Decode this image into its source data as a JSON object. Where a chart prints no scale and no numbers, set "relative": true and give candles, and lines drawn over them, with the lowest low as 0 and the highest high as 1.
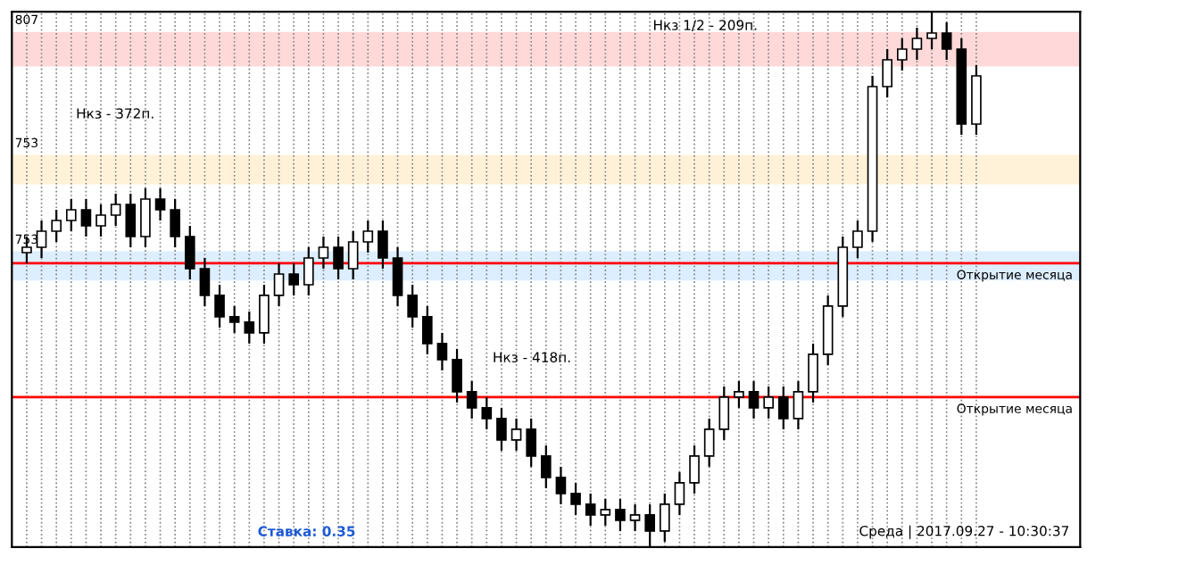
{
  "chart_data": {
    "type": "candlestick",
    "relative": true,
    "categories": [
      null,
      null,
      null,
      null,
      null,
      null,
      null,
      null,
      null,
      null,
      null,
      null,
      null,
      null,
      null,
      null,
      null,
      null,
      null,
      null,
      null,
      null,
      null,
      null,
      null,
      null,
      null,
      null,
      null,
      null,
      null,
      null,
      null,
      null,
      null,
      null,
      null,
      null,
      null,
      null,
      null,
      null,
      null,
      null,
      null,
      null,
      null,
      null,
      null,
      null,
      null,
      null,
      null,
      null,
      null,
      null,
      null,
      null,
      null,
      null,
      null,
      null,
      null,
      null,
      null
    ],
    "ohlc": [
      [
        0.55,
        0.58,
        0.53,
        0.56
      ],
      [
        0.56,
        0.61,
        0.54,
        0.59
      ],
      [
        0.59,
        0.63,
        0.57,
        0.61
      ],
      [
        0.61,
        0.65,
        0.59,
        0.63
      ],
      [
        0.63,
        0.65,
        0.58,
        0.6
      ],
      [
        0.6,
        0.64,
        0.58,
        0.62
      ],
      [
        0.62,
        0.66,
        0.6,
        0.64
      ],
      [
        0.64,
        0.66,
        0.56,
        0.58
      ],
      [
        0.58,
        0.67,
        0.56,
        0.65
      ],
      [
        0.65,
        0.67,
        0.61,
        0.63
      ],
      [
        0.63,
        0.65,
        0.56,
        0.58
      ],
      [
        0.58,
        0.6,
        0.5,
        0.52
      ],
      [
        0.52,
        0.54,
        0.45,
        0.47
      ],
      [
        0.47,
        0.49,
        0.41,
        0.43
      ],
      [
        0.43,
        0.45,
        0.4,
        0.42
      ],
      [
        0.42,
        0.44,
        0.38,
        0.4
      ],
      [
        0.4,
        0.49,
        0.38,
        0.47
      ],
      [
        0.47,
        0.53,
        0.45,
        0.51
      ],
      [
        0.51,
        0.53,
        0.47,
        0.49
      ],
      [
        0.49,
        0.56,
        0.47,
        0.54
      ],
      [
        0.54,
        0.58,
        0.52,
        0.56
      ],
      [
        0.56,
        0.58,
        0.5,
        0.52
      ],
      [
        0.52,
        0.59,
        0.5,
        0.57
      ],
      [
        0.57,
        0.61,
        0.55,
        0.59
      ],
      [
        0.59,
        0.61,
        0.52,
        0.54
      ],
      [
        0.54,
        0.56,
        0.45,
        0.47
      ],
      [
        0.47,
        0.49,
        0.41,
        0.43
      ],
      [
        0.43,
        0.45,
        0.36,
        0.38
      ],
      [
        0.38,
        0.4,
        0.33,
        0.35
      ],
      [
        0.35,
        0.37,
        0.27,
        0.29
      ],
      [
        0.29,
        0.31,
        0.24,
        0.26
      ],
      [
        0.26,
        0.28,
        0.22,
        0.24
      ],
      [
        0.24,
        0.26,
        0.18,
        0.2
      ],
      [
        0.2,
        0.24,
        0.18,
        0.22
      ],
      [
        0.22,
        0.24,
        0.15,
        0.17
      ],
      [
        0.17,
        0.19,
        0.11,
        0.13
      ],
      [
        0.13,
        0.15,
        0.08,
        0.1
      ],
      [
        0.1,
        0.12,
        0.06,
        0.08
      ],
      [
        0.08,
        0.1,
        0.04,
        0.06
      ],
      [
        0.06,
        0.09,
        0.04,
        0.07
      ],
      [
        0.07,
        0.09,
        0.03,
        0.05
      ],
      [
        0.05,
        0.08,
        0.03,
        0.06
      ],
      [
        0.06,
        0.08,
        0.0,
        0.03
      ],
      [
        0.03,
        0.1,
        0.01,
        0.08
      ],
      [
        0.08,
        0.14,
        0.06,
        0.12
      ],
      [
        0.12,
        0.19,
        0.1,
        0.17
      ],
      [
        0.17,
        0.24,
        0.15,
        0.22
      ],
      [
        0.22,
        0.3,
        0.2,
        0.28
      ],
      [
        0.28,
        0.31,
        0.26,
        0.29
      ],
      [
        0.29,
        0.31,
        0.24,
        0.26
      ],
      [
        0.26,
        0.3,
        0.24,
        0.28
      ],
      [
        0.28,
        0.3,
        0.22,
        0.24
      ],
      [
        0.24,
        0.31,
        0.22,
        0.29
      ],
      [
        0.29,
        0.38,
        0.27,
        0.36
      ],
      [
        0.36,
        0.47,
        0.34,
        0.45
      ],
      [
        0.45,
        0.58,
        0.43,
        0.56
      ],
      [
        0.56,
        0.61,
        0.54,
        0.59
      ],
      [
        0.59,
        0.88,
        0.57,
        0.86
      ],
      [
        0.86,
        0.93,
        0.84,
        0.91
      ],
      [
        0.91,
        0.95,
        0.89,
        0.93
      ],
      [
        0.93,
        0.97,
        0.91,
        0.95
      ],
      [
        0.95,
        1.0,
        0.93,
        0.96
      ],
      [
        0.96,
        0.98,
        0.91,
        0.93
      ],
      [
        0.93,
        0.95,
        0.77,
        0.79
      ],
      [
        0.79,
        0.9,
        0.77,
        0.88
      ]
    ],
    "bands": [
      {
        "axis": "y",
        "from": 0.9,
        "to": 0.96,
        "label": "807",
        "color": "#ff0000"
      },
      {
        "axis": "y",
        "from": 0.68,
        "to": 0.73,
        "label": "753",
        "color": "#ffa500"
      },
      {
        "axis": "y",
        "from": 0.5,
        "to": 0.55,
        "label": "753",
        "color": "#1e90ff"
      }
    ],
    "ref_lines": [
      {
        "axis": "y",
        "value": 0.53,
        "label": "Открытие месяца",
        "color": "#ff0000"
      },
      {
        "axis": "y",
        "value": 0.28,
        "label": "Открытие месяца",
        "color": "#ff0000"
      }
    ],
    "annotations": [
      "Нкз - 372п.",
      "Нкз - 418п.",
      "Нкз 1/2 - 209п.",
      "Ставка: 0.35",
      "Среда | 2017.09.27 - 10:30:37"
    ],
    "grid": true
  }
}
